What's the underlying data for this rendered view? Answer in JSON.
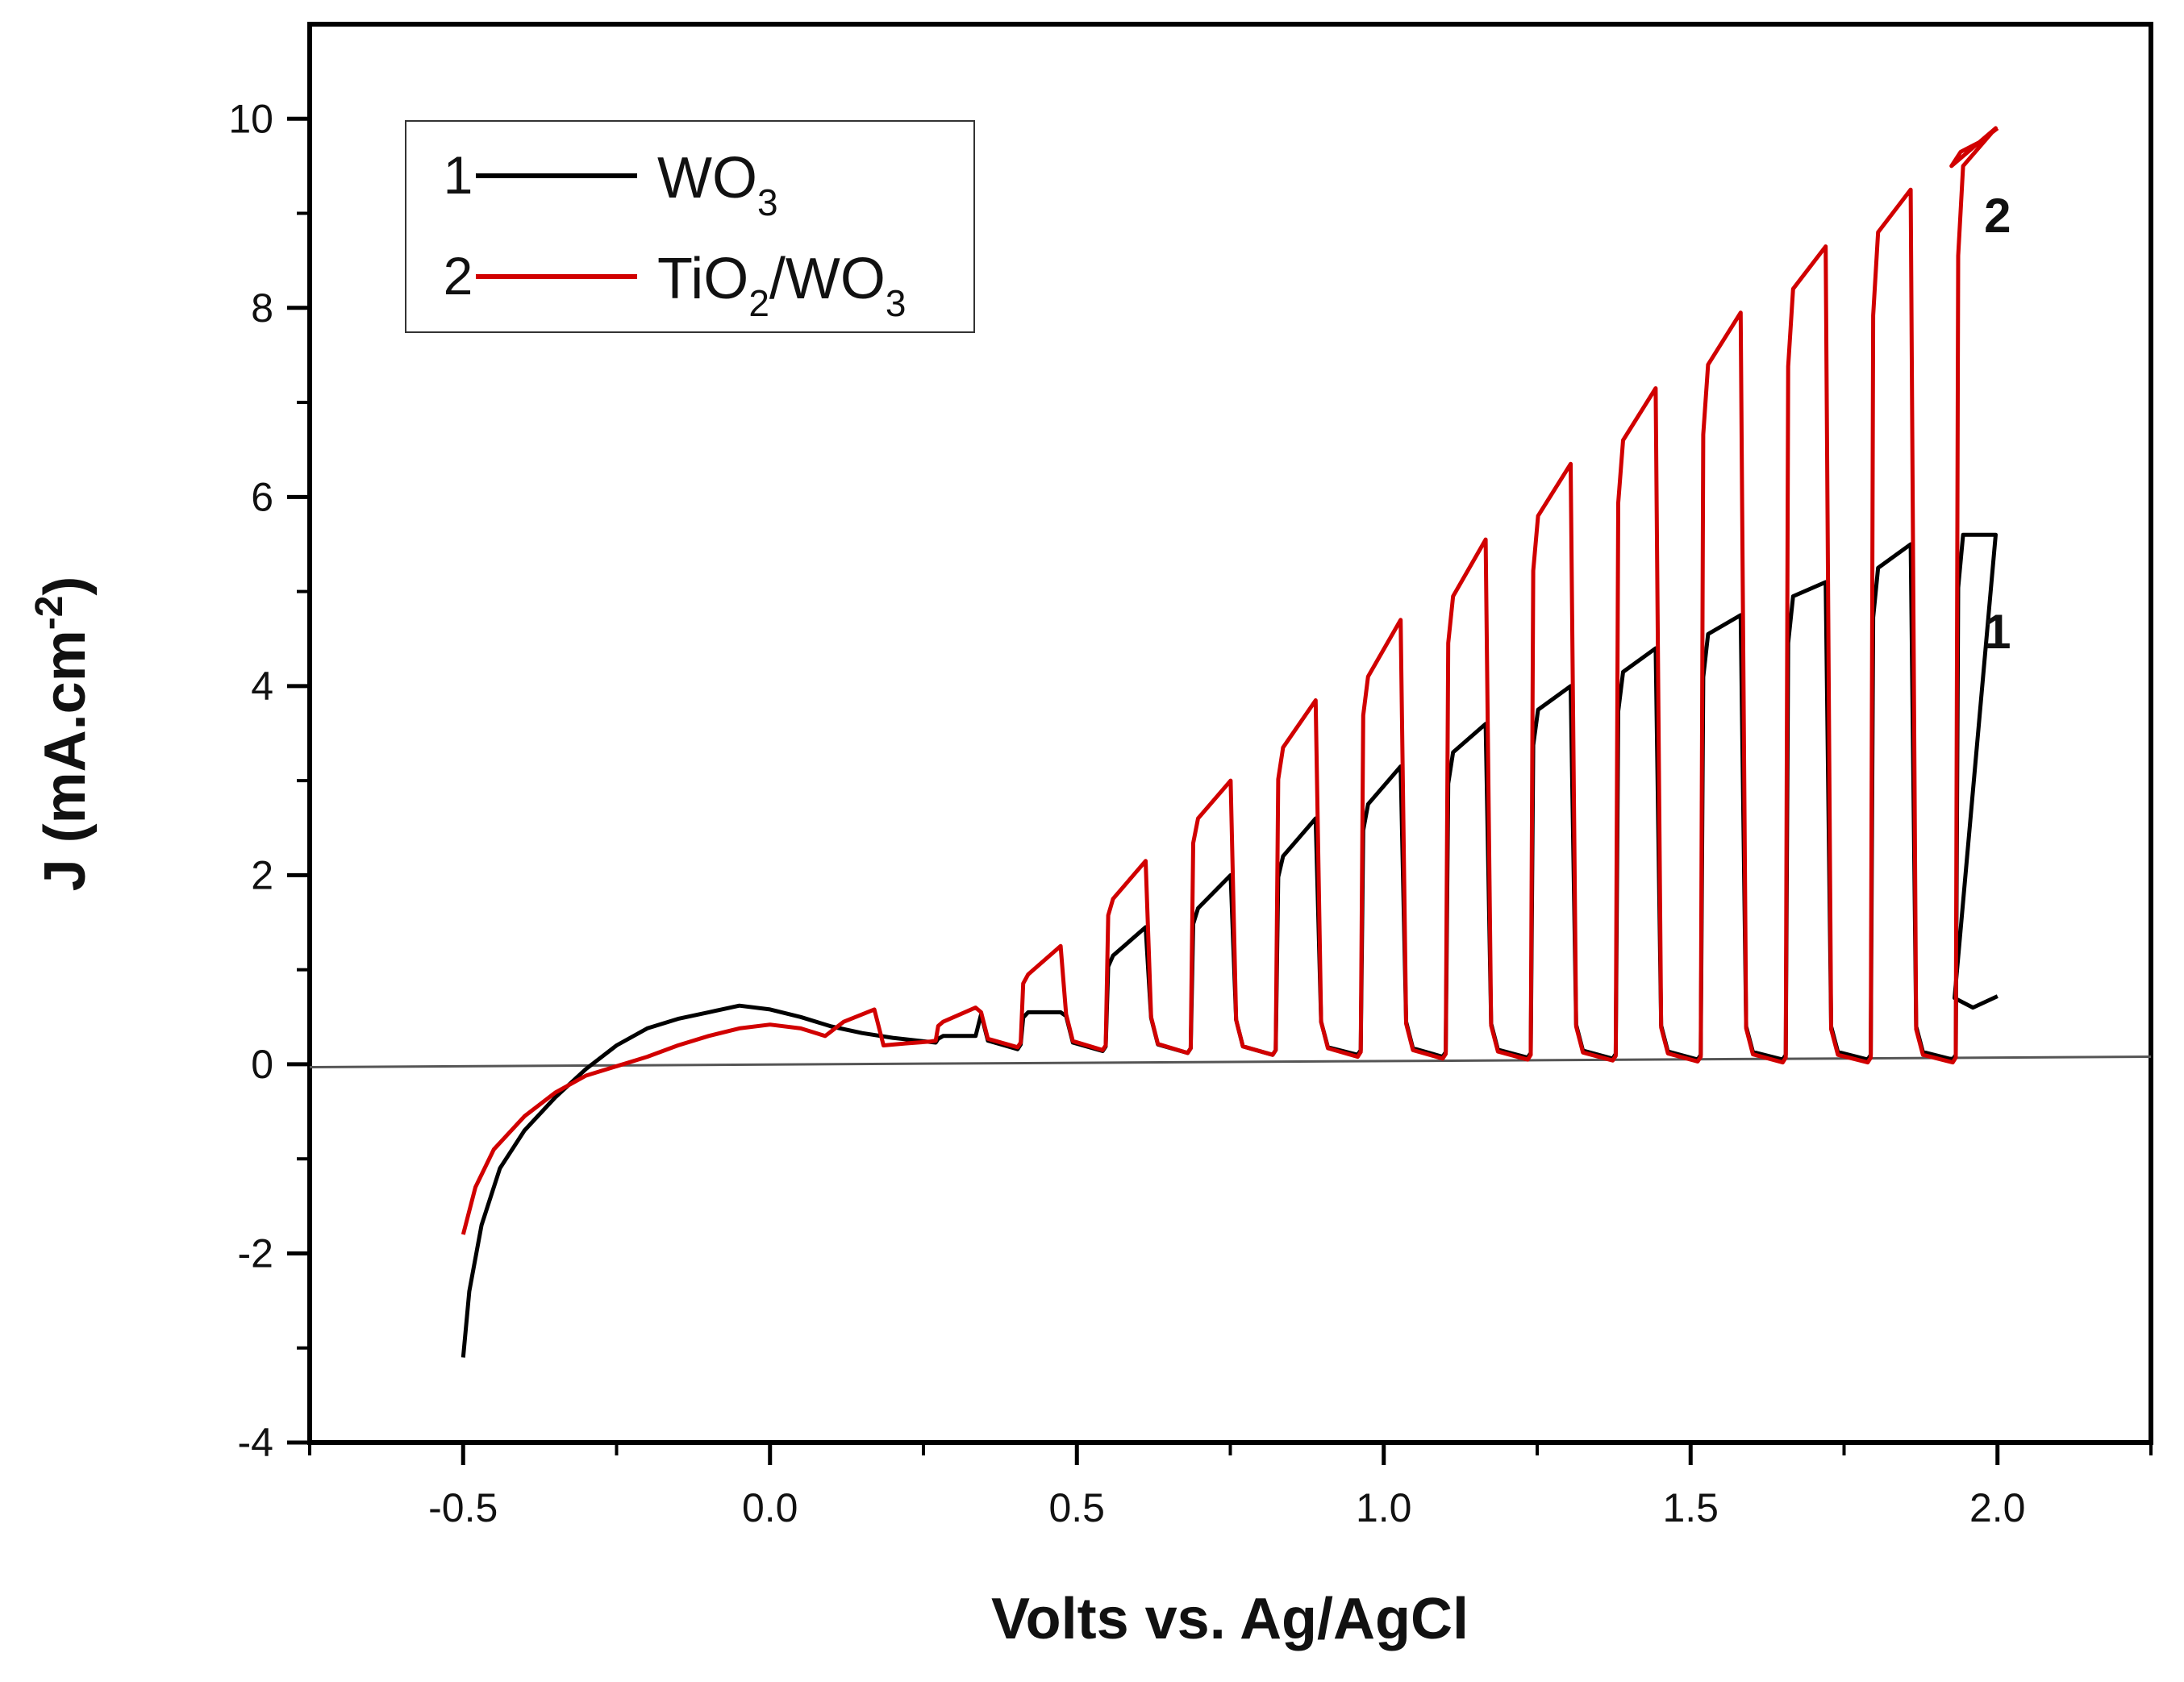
{
  "chart_data": {
    "type": "line",
    "title": "",
    "xlabel": "Volts vs. Ag/AgCl",
    "ylabel": "J (mA.cm-2)",
    "ylabel_main": "J (mA.cm",
    "ylabel_sup": "-2",
    "ylabel_close": ")",
    "xlim": [
      -0.75,
      2.25
    ],
    "ylim": [
      -4,
      11
    ],
    "xticks": [
      -0.5,
      0.0,
      0.5,
      1.0,
      1.5,
      2.0
    ],
    "xtick_labels": [
      "-0.5",
      "0.0",
      "0.5",
      "1.0",
      "1.5",
      "2.0"
    ],
    "yticks": [
      -4,
      -2,
      0,
      2,
      4,
      6,
      8,
      10
    ],
    "ytick_labels": [
      "-4",
      "-2",
      "0",
      "2",
      "4",
      "6",
      "8",
      "10"
    ],
    "legend_position": "top-left",
    "baseline": {
      "name": "zero line",
      "color": "#555555",
      "points": [
        [
          -0.75,
          -0.03
        ],
        [
          2.25,
          0.08
        ]
      ]
    },
    "series": [
      {
        "id": "1",
        "name": "WO3",
        "label_main": "WO",
        "label_sub": "3",
        "color": "#000000",
        "tag": "1",
        "tag_pos": [
          2.0,
          4.4
        ],
        "dark_dip": [
          0.22,
          0.2,
          0.18,
          0.16,
          0.14,
          0.12,
          0.1,
          0.1,
          0.08,
          0.07,
          0.06,
          0.05,
          0.05,
          0.05,
          0.05,
          0.15
        ],
        "light_on": [
          0.3,
          0.55,
          1.15,
          1.65,
          2.2,
          2.75,
          3.3,
          3.75,
          4.15,
          4.55,
          4.95,
          5.25,
          5.6
        ],
        "light_off": [
          0.3,
          0.55,
          1.45,
          2.0,
          2.6,
          3.15,
          3.6,
          4.0,
          4.4,
          4.75,
          5.1,
          5.5,
          5.6
        ]
      },
      {
        "id": "2",
        "name": "TiO2/WO3",
        "label_main": "TiO",
        "label_sub": "2",
        "label_mid": "/WO",
        "label_sub2": "3",
        "color": "#d10000",
        "tag": "2",
        "tag_pos": [
          2.0,
          8.8
        ],
        "dark_dip": [
          0.25,
          0.22,
          0.2,
          0.18,
          0.15,
          0.12,
          0.1,
          0.08,
          0.06,
          0.05,
          0.04,
          0.03,
          0.02,
          0.02,
          0.02,
          0.3
        ],
        "light_on": [
          0.45,
          0.95,
          1.75,
          2.6,
          3.35,
          4.1,
          4.95,
          5.8,
          6.6,
          7.4,
          8.2,
          8.8,
          9.5
        ],
        "light_off": [
          0.6,
          1.25,
          2.15,
          3.0,
          3.85,
          4.7,
          5.55,
          6.35,
          7.15,
          7.95,
          8.65,
          9.25,
          9.9
        ]
      }
    ]
  }
}
